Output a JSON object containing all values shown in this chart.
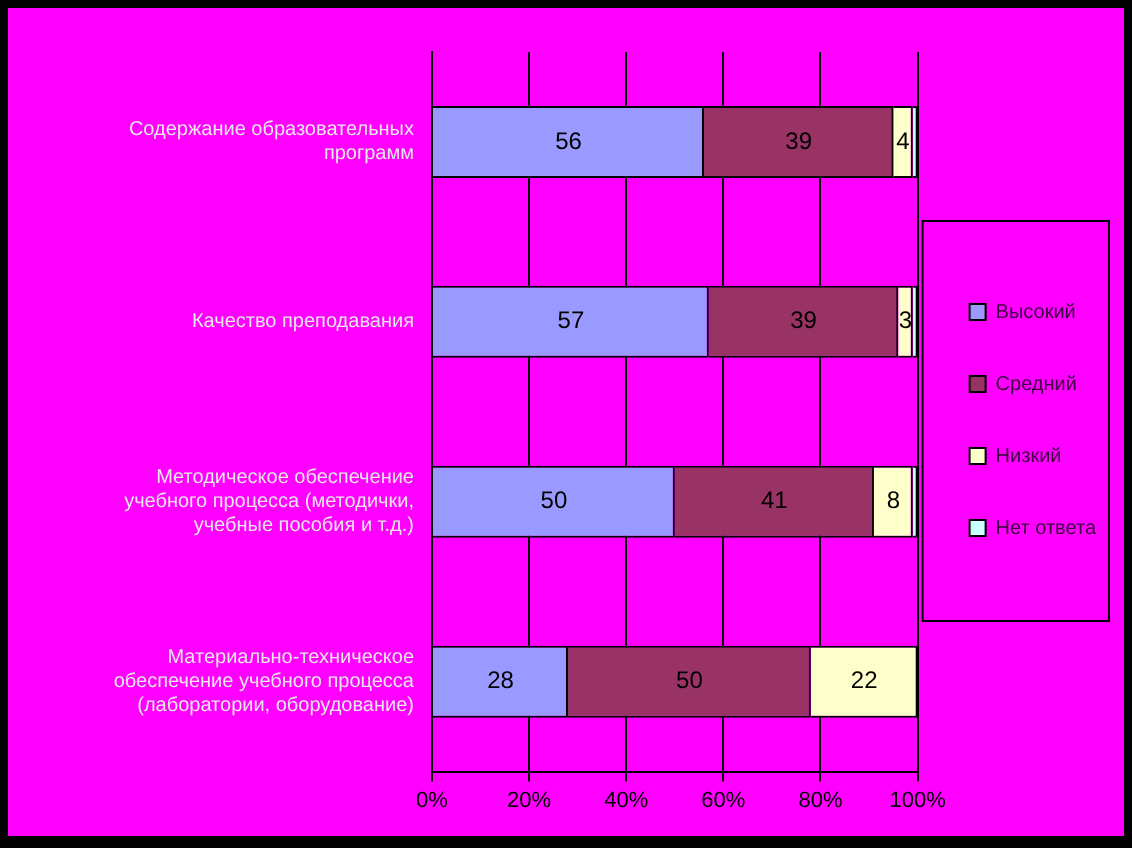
{
  "chart_data": {
    "type": "bar",
    "orientation": "horizontal",
    "stacked": true,
    "categories": [
      "Содержание образовательных программ",
      "Качество преподавания",
      "Методическое обеспечение учебного процесса (методички, учебные пособия и т.д.)",
      "Материально-техническое обеспечение учебного процесса (лаборатории, оборудование)"
    ],
    "series": [
      {
        "name": "Высокий",
        "color": "#9999ff",
        "values": [
          56,
          57,
          50,
          28
        ],
        "value_labels": [
          "56",
          "57",
          "50",
          "28"
        ]
      },
      {
        "name": "Средний",
        "color": "#993366",
        "values": [
          39,
          39,
          41,
          50
        ],
        "value_labels": [
          "39",
          "39",
          "41",
          "50"
        ]
      },
      {
        "name": "Низкий",
        "color": "#ffffcc",
        "values": [
          4,
          3,
          8,
          22
        ],
        "value_labels": [
          "4",
          "3",
          "8",
          "22"
        ]
      },
      {
        "name": "Нет ответа",
        "color": "#ccffff",
        "values": [
          1,
          1,
          1,
          0
        ]
      }
    ],
    "xlim": [
      0,
      100
    ],
    "xticks": [
      {
        "value": 0,
        "label": "0%"
      },
      {
        "value": 20,
        "label": "20%"
      },
      {
        "value": 40,
        "label": "40%"
      },
      {
        "value": 60,
        "label": "60%"
      },
      {
        "value": 80,
        "label": "80%"
      },
      {
        "value": 100,
        "label": "100%"
      }
    ],
    "grid": "x",
    "legend": "right"
  }
}
